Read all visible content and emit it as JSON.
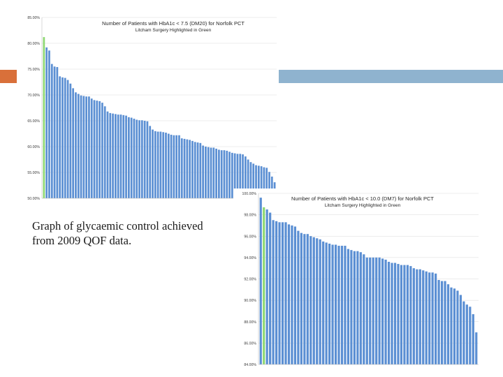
{
  "caption": "Graph of glycaemic control achieved from 2009 QOF data.",
  "colors": {
    "accent_left": "#d9703a",
    "accent_right": "#8fb3cf",
    "bar": "#5b8fd3",
    "highlight": "#8ed873",
    "grid": "#d9d9d9"
  },
  "chart_data": [
    {
      "type": "bar",
      "title": "Number of Patients with HbA1c < 7.5 (DM20) for Norfolk PCT",
      "subtitle": "Litcham Surgery Highlighted in Green",
      "highlight_index": 0,
      "ylim": [
        50,
        85
      ],
      "yticks": [
        "85.00%",
        "80.00%",
        "75.00%",
        "70.00%",
        "65.00%",
        "60.00%",
        "55.00%",
        "50.00%"
      ],
      "ytick_values": [
        85,
        80,
        75,
        70,
        65,
        60,
        55,
        50
      ],
      "grid": true,
      "values": [
        81.2,
        79.2,
        78.6,
        76.0,
        75.5,
        75.4,
        73.6,
        73.4,
        73.3,
        72.9,
        72.2,
        71.3,
        70.5,
        70.2,
        69.9,
        69.8,
        69.7,
        69.7,
        69.3,
        69.0,
        68.9,
        68.8,
        68.5,
        67.8,
        66.8,
        66.5,
        66.4,
        66.3,
        66.2,
        66.2,
        66.1,
        66.0,
        65.7,
        65.6,
        65.4,
        65.2,
        65.1,
        65.1,
        65.0,
        64.9,
        64.0,
        63.3,
        63.0,
        62.9,
        62.9,
        62.8,
        62.7,
        62.5,
        62.3,
        62.2,
        62.2,
        62.2,
        61.6,
        61.5,
        61.4,
        61.3,
        61.1,
        60.9,
        60.8,
        60.7,
        60.2,
        60.0,
        59.9,
        59.8,
        59.8,
        59.6,
        59.4,
        59.3,
        59.3,
        59.2,
        59.0,
        58.8,
        58.7,
        58.6,
        58.6,
        58.5,
        58.1,
        57.5,
        57.0,
        56.7,
        56.4,
        56.3,
        56.2,
        56.0,
        55.9,
        55.1,
        54.2,
        53.1
      ]
    },
    {
      "type": "bar",
      "title": "Number of Patients with HbA1c < 10.0 (DM7) for Norfolk PCT",
      "subtitle": "Litcham Surgery Highlighted in Green",
      "highlight_index": 1,
      "ylim": [
        84,
        100
      ],
      "yticks": [
        "100.00%",
        "98.00%",
        "96.00%",
        "94.00%",
        "92.00%",
        "90.00%",
        "88.00%",
        "86.00%",
        "84.00%"
      ],
      "ytick_values": [
        100,
        98,
        96,
        94,
        92,
        90,
        88,
        86,
        84
      ],
      "grid": true,
      "values": [
        99.6,
        98.7,
        98.5,
        98.2,
        97.5,
        97.4,
        97.3,
        97.3,
        97.3,
        97.1,
        97.0,
        96.9,
        96.5,
        96.3,
        96.2,
        96.2,
        96.0,
        95.9,
        95.8,
        95.7,
        95.5,
        95.4,
        95.3,
        95.2,
        95.2,
        95.1,
        95.1,
        95.1,
        94.8,
        94.7,
        94.6,
        94.6,
        94.5,
        94.3,
        94.0,
        94.0,
        94.0,
        94.0,
        94.0,
        93.9,
        93.8,
        93.6,
        93.5,
        93.5,
        93.4,
        93.3,
        93.3,
        93.3,
        93.2,
        93.0,
        92.9,
        92.9,
        92.8,
        92.7,
        92.6,
        92.6,
        92.5,
        91.9,
        91.8,
        91.8,
        91.5,
        91.2,
        91.1,
        90.9,
        90.5,
        89.9,
        89.6,
        89.4,
        88.7,
        87.0
      ]
    }
  ]
}
